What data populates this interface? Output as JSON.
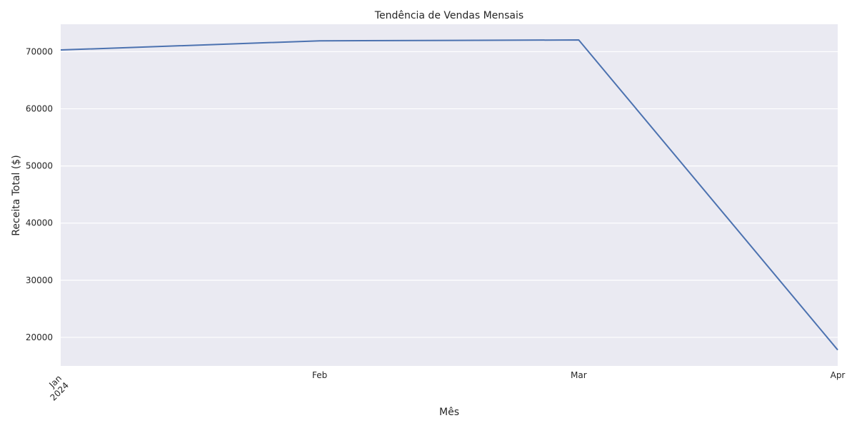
{
  "chart_data": {
    "type": "line",
    "title": "Tendência de Vendas Mensais",
    "xlabel": "Mês",
    "ylabel": "Receita Total ($)",
    "x": [
      "2024-01",
      "2024-02",
      "2024-03",
      "2024-04"
    ],
    "x_tick_labels": [
      {
        "line1": "Jan",
        "line2": "2024"
      },
      {
        "line1": "Feb",
        "line2": ""
      },
      {
        "line1": "Mar",
        "line2": ""
      },
      {
        "line1": "Apr",
        "line2": ""
      }
    ],
    "series": [
      {
        "values": [
          70300,
          71900,
          72050,
          17800
        ]
      }
    ],
    "yticks": [
      20000,
      30000,
      40000,
      50000,
      60000,
      70000
    ],
    "ylim": [
      15000,
      74800
    ],
    "grid": true,
    "colors": {
      "line": "#4c72b0",
      "plot_background": "#eaeaf2",
      "grid": "#ffffff",
      "text": "#262626"
    }
  }
}
